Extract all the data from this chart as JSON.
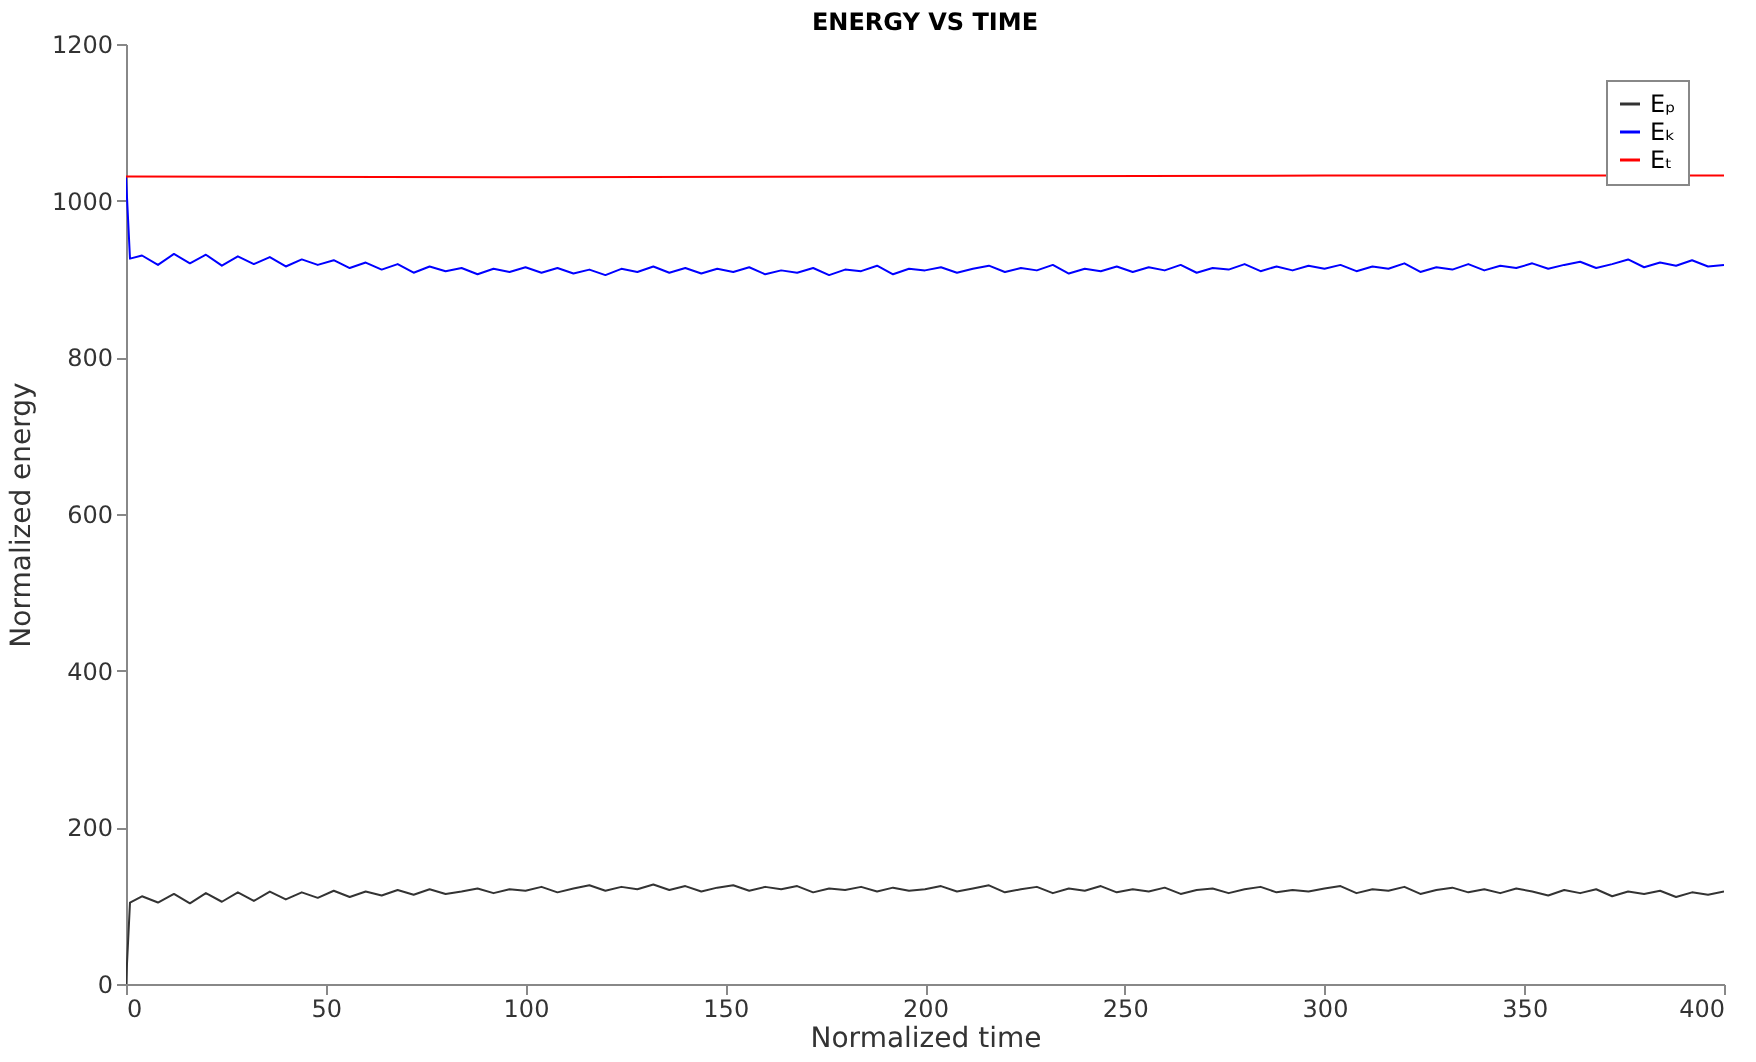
{
  "chart_data": {
    "type": "line",
    "title": "ENERGY VS TIME",
    "xlabel": "Normalized time",
    "ylabel": "Normalized energy",
    "xlim": [
      0,
      400
    ],
    "xticks": [
      0,
      50,
      100,
      150,
      200,
      250,
      300,
      350,
      400
    ],
    "ylim": [
      0,
      1200
    ],
    "yticks": [
      0,
      200,
      400,
      600,
      800,
      1000,
      1200
    ],
    "grid": false,
    "legend": "top right",
    "series": [
      {
        "name": "Eₚ",
        "color": "#333333",
        "x": [
          0,
          1,
          4,
          8,
          12,
          16,
          20,
          24,
          28,
          32,
          36,
          40,
          44,
          48,
          52,
          56,
          60,
          64,
          68,
          72,
          76,
          80,
          84,
          88,
          92,
          96,
          100,
          104,
          108,
          112,
          116,
          120,
          124,
          128,
          132,
          136,
          140,
          144,
          148,
          152,
          156,
          160,
          164,
          168,
          172,
          176,
          180,
          184,
          188,
          192,
          196,
          200,
          204,
          208,
          212,
          216,
          220,
          224,
          228,
          232,
          236,
          240,
          244,
          248,
          252,
          256,
          260,
          264,
          268,
          272,
          276,
          280,
          284,
          288,
          292,
          296,
          300,
          304,
          308,
          312,
          316,
          320,
          324,
          328,
          332,
          336,
          340,
          344,
          348,
          352,
          356,
          360,
          364,
          368,
          372,
          376,
          380,
          384,
          388,
          392,
          396,
          400
        ],
        "values": [
          0,
          104,
          112,
          104,
          115,
          103,
          116,
          105,
          117,
          106,
          118,
          108,
          117,
          110,
          119,
          111,
          118,
          113,
          120,
          114,
          121,
          115,
          118,
          122,
          116,
          121,
          119,
          124,
          117,
          122,
          126,
          119,
          124,
          121,
          127,
          120,
          125,
          118,
          123,
          126,
          119,
          124,
          121,
          125,
          117,
          122,
          120,
          124,
          118,
          123,
          119,
          121,
          125,
          118,
          122,
          126,
          117,
          121,
          124,
          116,
          122,
          119,
          125,
          117,
          121,
          118,
          123,
          115,
          120,
          122,
          116,
          121,
          124,
          117,
          120,
          118,
          122,
          125,
          116,
          121,
          119,
          124,
          115,
          120,
          123,
          117,
          121,
          116,
          122,
          118,
          113,
          120,
          116,
          121,
          112,
          118,
          115,
          119,
          111,
          117,
          114,
          118
        ]
      },
      {
        "name": "Eₖ",
        "color": "#0000ff",
        "x": [
          0,
          1,
          4,
          8,
          12,
          16,
          20,
          24,
          28,
          32,
          36,
          40,
          44,
          48,
          52,
          56,
          60,
          64,
          68,
          72,
          76,
          80,
          84,
          88,
          92,
          96,
          100,
          104,
          108,
          112,
          116,
          120,
          124,
          128,
          132,
          136,
          140,
          144,
          148,
          152,
          156,
          160,
          164,
          168,
          172,
          176,
          180,
          184,
          188,
          192,
          196,
          200,
          204,
          208,
          212,
          216,
          220,
          224,
          228,
          232,
          236,
          240,
          244,
          248,
          252,
          256,
          260,
          264,
          268,
          272,
          276,
          280,
          284,
          288,
          292,
          296,
          300,
          304,
          308,
          312,
          316,
          320,
          324,
          328,
          332,
          336,
          340,
          344,
          348,
          352,
          356,
          360,
          364,
          368,
          372,
          376,
          380,
          384,
          388,
          392,
          396,
          400
        ],
        "values": [
          1030,
          926,
          930,
          918,
          932,
          920,
          931,
          917,
          929,
          919,
          928,
          916,
          925,
          918,
          924,
          914,
          921,
          912,
          919,
          908,
          916,
          910,
          914,
          906,
          913,
          909,
          915,
          908,
          914,
          907,
          912,
          905,
          913,
          909,
          916,
          908,
          914,
          907,
          913,
          909,
          915,
          906,
          911,
          908,
          914,
          905,
          912,
          910,
          917,
          906,
          913,
          911,
          915,
          908,
          913,
          917,
          909,
          914,
          911,
          918,
          907,
          913,
          910,
          916,
          909,
          915,
          911,
          918,
          908,
          914,
          912,
          919,
          910,
          916,
          911,
          917,
          913,
          918,
          910,
          916,
          913,
          920,
          909,
          915,
          912,
          919,
          911,
          917,
          914,
          920,
          913,
          918,
          922,
          914,
          919,
          925,
          915,
          921,
          917,
          924,
          916,
          918
        ]
      },
      {
        "name": "Eₜ",
        "color": "#ff0000",
        "x": [
          0,
          100,
          200,
          300,
          400
        ],
        "values": [
          1031,
          1030,
          1031,
          1032,
          1032
        ]
      }
    ]
  }
}
